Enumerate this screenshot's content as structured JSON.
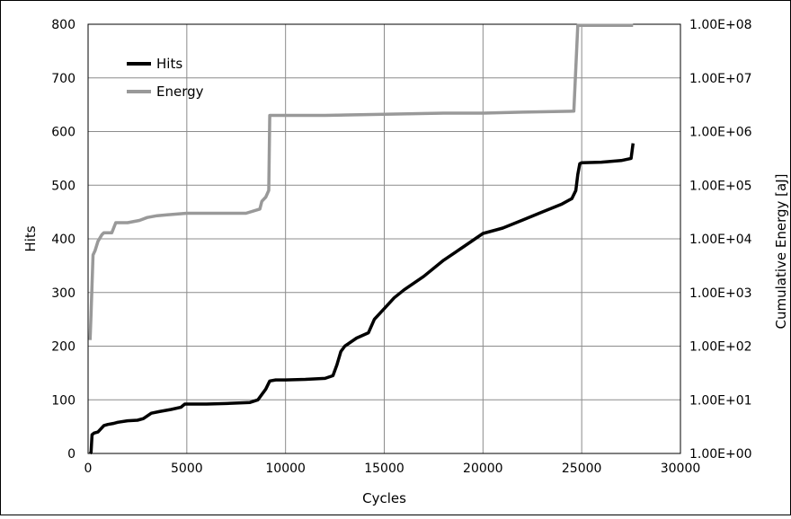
{
  "chart_data": {
    "type": "line",
    "title": "",
    "xlabel": "Cycles",
    "ylabel": "Hits",
    "y2label": "Cumulative Energy [aJ]",
    "xlim": [
      0,
      30000
    ],
    "ylim": [
      0,
      800
    ],
    "y2lim": [
      1,
      100000000
    ],
    "y2scale": "log",
    "grid": true,
    "legend": "top-left",
    "x_ticks": [
      "0",
      "5000",
      "10000",
      "15000",
      "20000",
      "25000",
      "30000"
    ],
    "y_ticks": [
      "0",
      "100",
      "200",
      "300",
      "400",
      "500",
      "600",
      "700",
      "800"
    ],
    "y2_ticks": [
      "1.00E+00",
      "1.00E+01",
      "1.00E+02",
      "1.00E+03",
      "1.00E+04",
      "1.00E+05",
      "1.00E+06",
      "1.00E+07",
      "1.00E+08"
    ],
    "series": [
      {
        "name": "Hits",
        "axis": "left",
        "color": "#000000",
        "x": [
          100,
          150,
          200,
          300,
          500,
          700,
          800,
          1000,
          1300,
          1500,
          2000,
          2500,
          2800,
          3200,
          3600,
          4200,
          4700,
          4900,
          6000,
          7000,
          8200,
          8600,
          8800,
          9000,
          9200,
          9500,
          10000,
          11000,
          12000,
          12400,
          12600,
          12800,
          13000,
          13200,
          13600,
          14200,
          14500,
          15000,
          15500,
          16000,
          17000,
          18000,
          19000,
          20000,
          21000,
          22000,
          23000,
          24000,
          24500,
          24700,
          24800,
          24900,
          25000,
          26000,
          27000,
          27500,
          27600
        ],
        "y": [
          0,
          2,
          35,
          38,
          40,
          48,
          52,
          54,
          56,
          58,
          61,
          62,
          65,
          75,
          78,
          82,
          86,
          92,
          92,
          93,
          95,
          100,
          110,
          120,
          135,
          137,
          137,
          138,
          140,
          145,
          165,
          190,
          200,
          205,
          215,
          225,
          250,
          270,
          290,
          305,
          330,
          360,
          385,
          410,
          420,
          435,
          450,
          465,
          475,
          490,
          520,
          540,
          542,
          543,
          546,
          550,
          578
        ]
      },
      {
        "name": "Energy",
        "axis": "right",
        "color": "#999999",
        "x": [
          100,
          150,
          250,
          350,
          500,
          700,
          800,
          1000,
          1200,
          1400,
          1600,
          2000,
          2600,
          3000,
          3500,
          4000,
          5000,
          6000,
          7000,
          8000,
          8700,
          8800,
          9000,
          9150,
          9200,
          9300,
          10000,
          12000,
          15000,
          18000,
          20000,
          22000,
          24600,
          24800,
          24900,
          26000,
          27600
        ],
        "y": [
          130,
          400,
          5000,
          6000,
          9000,
          12000,
          13000,
          13000,
          13000,
          20000,
          20000,
          20000,
          22000,
          25000,
          27000,
          28000,
          30000,
          30000,
          30000,
          30000,
          36000,
          50000,
          60000,
          80000,
          2000000,
          2000000,
          2000000,
          2000000,
          2100000,
          2200000,
          2200000,
          2300000,
          2400000,
          95000000,
          95000000,
          95000000,
          95000000
        ]
      }
    ]
  }
}
